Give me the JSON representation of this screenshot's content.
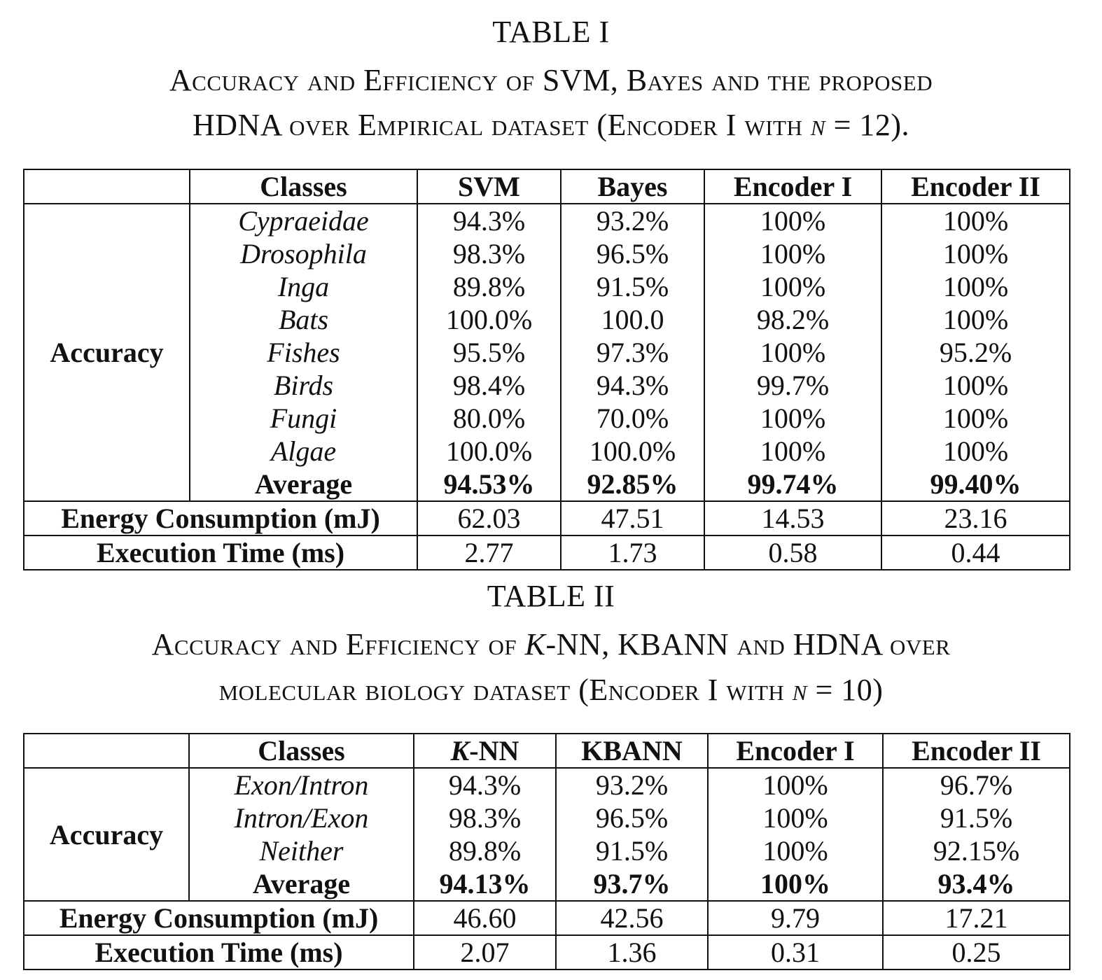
{
  "table1": {
    "label": "TABLE I",
    "caption_line1": "Accuracy and Efficiency of SVM, Bayes and the proposed",
    "caption_line2_a": "HDNA over Empirical dataset (Encoder I with ",
    "caption_n": "n",
    "caption_line2_b": " = 12).",
    "headers": [
      "Classes",
      "SVM",
      "Bayes",
      "Encoder I",
      "Encoder II"
    ],
    "row_group": "Accuracy",
    "rows": [
      {
        "cls": "Cypraeidae",
        "v": [
          "94.3%",
          "93.2%",
          "100%",
          "100%"
        ]
      },
      {
        "cls": "Drosophila",
        "v": [
          "98.3%",
          "96.5%",
          "100%",
          "100%"
        ]
      },
      {
        "cls": "Inga",
        "v": [
          "89.8%",
          "91.5%",
          "100%",
          "100%"
        ]
      },
      {
        "cls": "Bats",
        "v": [
          "100.0%",
          "100.0",
          "98.2%",
          "100%"
        ]
      },
      {
        "cls": "Fishes",
        "v": [
          "95.5%",
          "97.3%",
          "100%",
          "95.2%"
        ]
      },
      {
        "cls": "Birds",
        "v": [
          "98.4%",
          "94.3%",
          "99.7%",
          "100%"
        ]
      },
      {
        "cls": "Fungi",
        "v": [
          "80.0%",
          "70.0%",
          "100%",
          "100%"
        ]
      },
      {
        "cls": "Algae",
        "v": [
          "100.0%",
          "100.0%",
          "100%",
          "100%"
        ]
      }
    ],
    "average": {
      "label": "Average",
      "v": [
        "94.53%",
        "92.85%",
        "99.74%",
        "99.40%"
      ]
    },
    "energy": {
      "label": "Energy Consumption (mJ)",
      "v": [
        "62.03",
        "47.51",
        "14.53",
        "23.16"
      ]
    },
    "time": {
      "label": "Execution Time (ms)",
      "v": [
        "2.77",
        "1.73",
        "0.58",
        "0.44"
      ]
    }
  },
  "table2": {
    "label": "TABLE II",
    "caption_line1_a": "Accuracy and Efficiency of ",
    "caption_k": "K",
    "caption_line1_b": "-NN, KBANN and HDNA over",
    "caption_line2_a": "molecular biology dataset (Encoder I with ",
    "caption_n": "n",
    "caption_line2_b": " = 10)",
    "headers": [
      "Classes",
      "K",
      "-NN",
      "KBANN",
      "Encoder I",
      "Encoder II"
    ],
    "row_group": "Accuracy",
    "rows": [
      {
        "cls": "Exon/Intron",
        "v": [
          "94.3%",
          "93.2%",
          "100%",
          "96.7%"
        ]
      },
      {
        "cls": "Intron/Exon",
        "v": [
          "98.3%",
          "96.5%",
          "100%",
          "91.5%"
        ]
      },
      {
        "cls": "Neither",
        "v": [
          "89.8%",
          "91.5%",
          "100%",
          "92.15%"
        ]
      }
    ],
    "average": {
      "label": "Average",
      "v": [
        "94.13%",
        "93.7%",
        "100%",
        "93.4%"
      ]
    },
    "energy": {
      "label": "Energy Consumption (mJ)",
      "v": [
        "46.60",
        "42.56",
        "9.79",
        "17.21"
      ]
    },
    "time": {
      "label": "Execution Time (ms)",
      "v": [
        "2.07",
        "1.36",
        "0.31",
        "0.25"
      ]
    }
  }
}
